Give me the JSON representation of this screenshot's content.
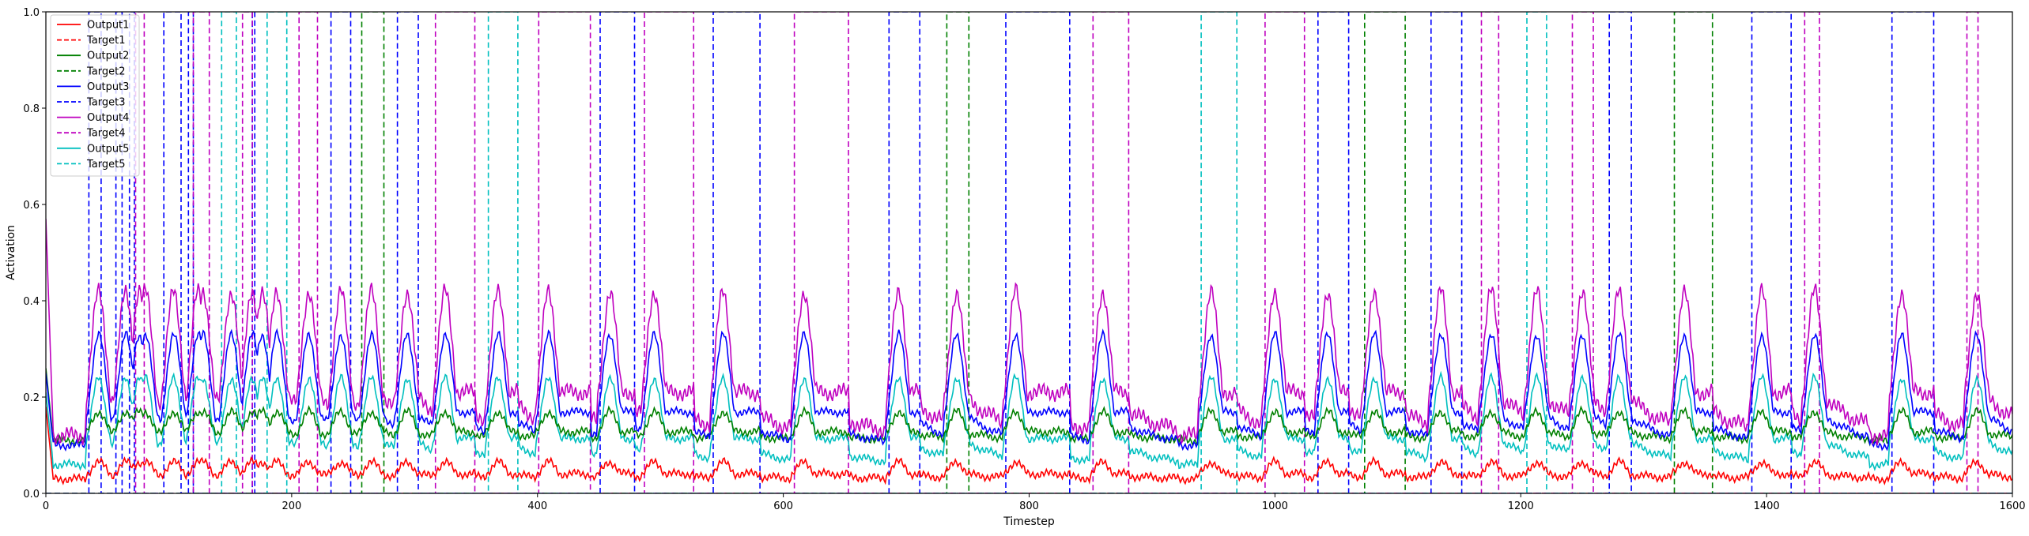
{
  "chart_data": {
    "type": "line",
    "xlabel": "Timestep",
    "ylabel": "Activation",
    "xlim": [
      0,
      1600
    ],
    "ylim": [
      0.0,
      1.0
    ],
    "xticks": [
      "0",
      "200",
      "400",
      "600",
      "800",
      "1000",
      "1200",
      "1400",
      "1600"
    ],
    "yticks": [
      "0.0",
      "0.2",
      "0.4",
      "0.6",
      "0.8",
      "1.0"
    ],
    "grid": false,
    "legend_position": "top-left",
    "series": [
      {
        "name": "Output1",
        "style": "solid",
        "color": "#ff0000"
      },
      {
        "name": "Target1",
        "style": "dashed",
        "color": "#ff0000"
      },
      {
        "name": "Output2",
        "style": "solid",
        "color": "#008000"
      },
      {
        "name": "Target2",
        "style": "dashed",
        "color": "#008000"
      },
      {
        "name": "Output3",
        "style": "solid",
        "color": "#0000ff"
      },
      {
        "name": "Target3",
        "style": "dashed",
        "color": "#0000ff"
      },
      {
        "name": "Output4",
        "style": "solid",
        "color": "#bf00bf"
      },
      {
        "name": "Target4",
        "style": "dashed",
        "color": "#bf00bf"
      },
      {
        "name": "Output5",
        "style": "solid",
        "color": "#00bfbf"
      },
      {
        "name": "Target5",
        "style": "dashed",
        "color": "#00bfbf"
      }
    ],
    "target_pulses": [
      {
        "target": "Target3",
        "start": 35,
        "end": 45
      },
      {
        "target": "Target3",
        "start": 57,
        "end": 62
      },
      {
        "target": "Target3",
        "start": 68,
        "end": 72
      },
      {
        "target": "Target4",
        "start": 73,
        "end": 80
      },
      {
        "target": "Target3",
        "start": 96,
        "end": 110
      },
      {
        "target": "Target3",
        "start": 116,
        "end": 120
      },
      {
        "target": "Target4",
        "start": 120,
        "end": 133
      },
      {
        "target": "Target5",
        "start": 143,
        "end": 155
      },
      {
        "target": "Target4",
        "start": 160,
        "end": 168
      },
      {
        "target": "Target3",
        "start": 168,
        "end": 170
      },
      {
        "target": "Target5",
        "start": 180,
        "end": 196
      },
      {
        "target": "Target4",
        "start": 206,
        "end": 221
      },
      {
        "target": "Target3",
        "start": 232,
        "end": 248
      },
      {
        "target": "Target2",
        "start": 257,
        "end": 275
      },
      {
        "target": "Target3",
        "start": 286,
        "end": 303
      },
      {
        "target": "Target4",
        "start": 317,
        "end": 349
      },
      {
        "target": "Target5",
        "start": 360,
        "end": 384
      },
      {
        "target": "Target4",
        "start": 401,
        "end": 443
      },
      {
        "target": "Target3",
        "start": 451,
        "end": 479
      },
      {
        "target": "Target4",
        "start": 487,
        "end": 527
      },
      {
        "target": "Target3",
        "start": 543,
        "end": 581
      },
      {
        "target": "Target4",
        "start": 609,
        "end": 653
      },
      {
        "target": "Target3",
        "start": 686,
        "end": 711
      },
      {
        "target": "Target2",
        "start": 733,
        "end": 751
      },
      {
        "target": "Target3",
        "start": 781,
        "end": 833
      },
      {
        "target": "Target4",
        "start": 852,
        "end": 881
      },
      {
        "target": "Target5",
        "start": 940,
        "end": 969
      },
      {
        "target": "Target4",
        "start": 992,
        "end": 1024
      },
      {
        "target": "Target3",
        "start": 1035,
        "end": 1060
      },
      {
        "target": "Target2",
        "start": 1073,
        "end": 1106
      },
      {
        "target": "Target3",
        "start": 1127,
        "end": 1152
      },
      {
        "target": "Target4",
        "start": 1168,
        "end": 1182
      },
      {
        "target": "Target5",
        "start": 1205,
        "end": 1221
      },
      {
        "target": "Target4",
        "start": 1242,
        "end": 1259
      },
      {
        "target": "Target3",
        "start": 1272,
        "end": 1290
      },
      {
        "target": "Target2",
        "start": 1325,
        "end": 1356
      },
      {
        "target": "Target3",
        "start": 1388,
        "end": 1420
      },
      {
        "target": "Target4",
        "start": 1431,
        "end": 1443
      },
      {
        "target": "Target3",
        "start": 1502,
        "end": 1536
      },
      {
        "target": "Target4",
        "start": 1563,
        "end": 1572
      }
    ],
    "output_levels": [
      {
        "name": "Output1",
        "baseline": 0.03,
        "peak": 0.065
      },
      {
        "name": "Output2",
        "baseline": 0.11,
        "peak": 0.17
      },
      {
        "name": "Output3",
        "baseline": 0.1,
        "peak": 0.33
      },
      {
        "name": "Output4",
        "baseline": 0.12,
        "peak": 0.42
      },
      {
        "name": "Output5",
        "baseline": 0.06,
        "peak": 0.24
      }
    ]
  }
}
